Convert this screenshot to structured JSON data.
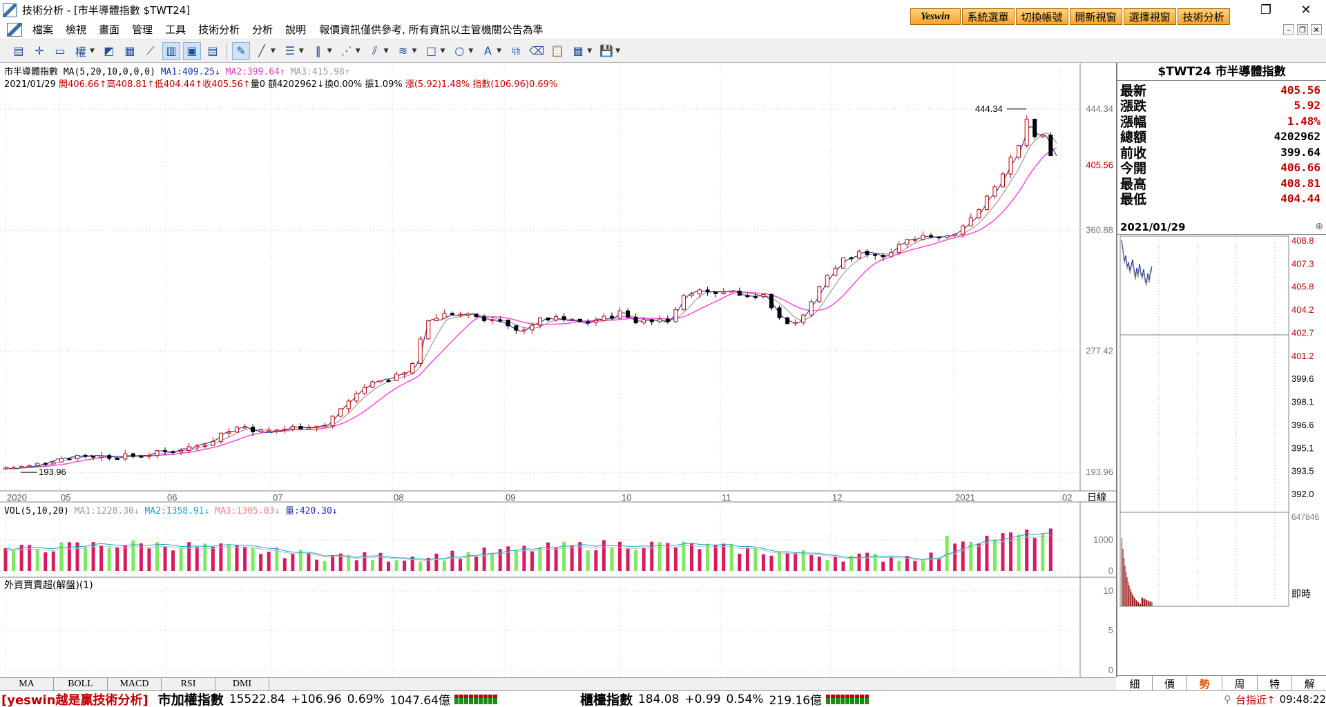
{
  "window": {
    "title": "技術分析 - [市半導體指數 $TWT24]"
  },
  "top_buttons": [
    "Yeswin",
    "系統選單",
    "切換帳號",
    "開新視窗",
    "選擇視窗",
    "技術分析"
  ],
  "menu": [
    "檔案",
    "檢視",
    "畫面",
    "管理",
    "工具",
    "技術分析",
    "分析",
    "說明"
  ],
  "menu_notice": "報價資訊僅供參考, 所有資訊以主管機關公告為準",
  "toolbar_weight_label": "權",
  "chart": {
    "title": "市半導體指數",
    "ma_label": "MA(5,20,10,0,0,0)",
    "ma1": "MA1:409.25",
    "ma2": "MA2:399.64",
    "ma3": "MA3:415.98",
    "info_date": "2021/01/29",
    "info_open": "開406.66",
    "info_high": "高408.81",
    "info_low": "低404.44",
    "info_close": "收405.56",
    "info_volume": "量0",
    "info_amount": "額4202962",
    "info_turnover": "換0.00%",
    "info_amplitude": "振1.09%",
    "info_change": "漲(5.92)1.48%",
    "info_index": "指數(106.96)0.69%",
    "high_marker": "444.34",
    "low_marker": "193.96",
    "y_ticks": [
      "444.34",
      "360.88",
      "277.42",
      "193.96"
    ],
    "last_price_label": "405.56",
    "x_labels": [
      "2020",
      "05",
      "06",
      "07",
      "08",
      "09",
      "10",
      "11",
      "12",
      "2021",
      "02"
    ],
    "x_unit": "日線"
  },
  "volume": {
    "label": "VOL(5,10,20)",
    "ma1": "MA1:1228.30",
    "ma2": "MA2:1358.91",
    "ma3": "MA3:1305.03",
    "vol": "量:420.30",
    "y_ticks": [
      "1000",
      "0"
    ]
  },
  "foreign": {
    "label": "外資買賣超(解盤)(1)",
    "y_ticks": [
      "10",
      "5",
      "0"
    ]
  },
  "bottom_tabs": [
    "MA",
    "BOLL",
    "MACD",
    "RSI",
    "DMI"
  ],
  "quote": {
    "symbol": "$TWT24 市半導體指數",
    "rows": [
      {
        "label": "最新",
        "value": "405.56"
      },
      {
        "label": "漲跌",
        "value": "5.92"
      },
      {
        "label": "漲幅",
        "value": "1.48%"
      },
      {
        "label": "總額",
        "value": "4202962"
      },
      {
        "label": "前收",
        "value": "399.64"
      },
      {
        "label": "今開",
        "value": "406.66"
      },
      {
        "label": "最高",
        "value": "408.81"
      },
      {
        "label": "最低",
        "value": "404.44"
      }
    ],
    "date": "2021/01/29",
    "mini_y_ticks": [
      "408.8",
      "407.3",
      "405.8",
      "404.2",
      "402.7",
      "401.2",
      "399.6",
      "398.1",
      "396.6",
      "395.1",
      "393.5",
      "392.0"
    ],
    "mini_vol_max": "647846",
    "mini_vol_label": "即時"
  },
  "right_tabs": [
    "細",
    "價",
    "勢",
    "周",
    "特",
    "解"
  ],
  "status": {
    "brand": "[yeswin越是贏技術分析]",
    "taiex_name": "市加權指數",
    "taiex_value": "15522.84",
    "taiex_change": "+106.96",
    "taiex_pct": "0.69%",
    "taiex_amount": "1047.64億",
    "otc_name": "櫃檯指數",
    "otc_value": "184.08",
    "otc_change": "+0.99",
    "otc_pct": "0.54%",
    "otc_amount": "219.16億",
    "right_text": "台指近↑",
    "time": "09:48:22"
  }
}
